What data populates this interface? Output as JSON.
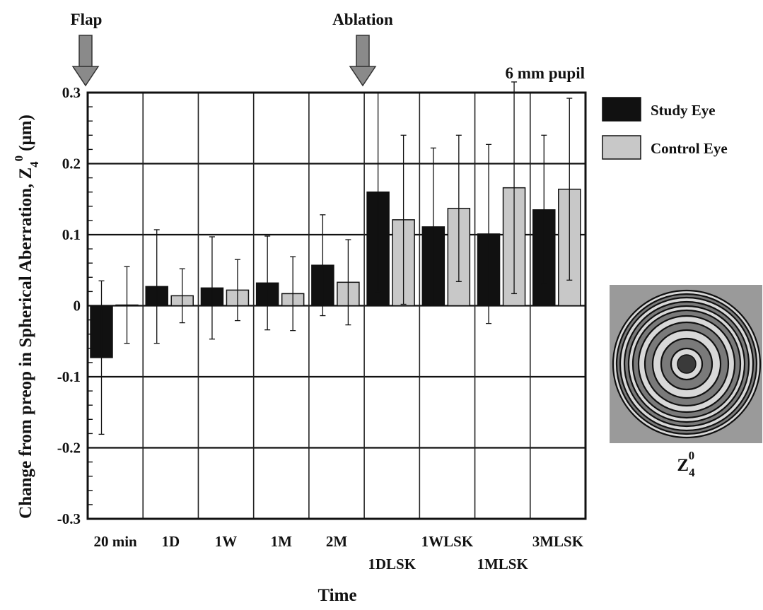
{
  "chart_data": {
    "type": "bar",
    "categories": [
      "20 min",
      "1D",
      "1W",
      "1M",
      "2M",
      "1DLSK",
      "1WLSK",
      "1MLSK",
      "3MLSK"
    ],
    "series": [
      {
        "name": "Study Eye",
        "color": "#111111",
        "values": [
          -0.073,
          0.027,
          0.025,
          0.032,
          0.057,
          0.16,
          0.111,
          0.101,
          0.135
        ],
        "error": [
          0.108,
          0.08,
          0.072,
          0.066,
          0.071,
          0.14,
          0.111,
          0.126,
          0.105
        ]
      },
      {
        "name": "Control Eye",
        "color": "#c8c8c8",
        "values": [
          0.001,
          0.014,
          0.022,
          0.017,
          0.033,
          0.121,
          0.137,
          0.166,
          0.164
        ],
        "error": [
          0.054,
          0.038,
          0.043,
          0.052,
          0.06,
          0.119,
          0.103,
          0.149,
          0.128
        ]
      }
    ],
    "xlabel": "Time",
    "ylabel": "Change from preop  in Spherical Aberration, Z",
    "ylabel_sub": "4",
    "ylabel_sup": "0",
    "ylabel_unit": "(μm)",
    "ylim": [
      -0.3,
      0.3
    ],
    "yticks": [
      -0.3,
      -0.2,
      -0.1,
      0,
      0.1,
      0.2,
      0.3
    ],
    "ytick_labels": [
      "-0.3",
      "-0.2",
      "-0.1",
      "0",
      "0.1",
      "0.2",
      "0.3"
    ],
    "grid": true,
    "legend": "right",
    "annotations": {
      "flap": "Flap",
      "ablation": "Ablation",
      "pupil": "6 mm pupil"
    },
    "inset": {
      "label": "Z",
      "label_sub": "4",
      "label_sup": "0"
    }
  }
}
